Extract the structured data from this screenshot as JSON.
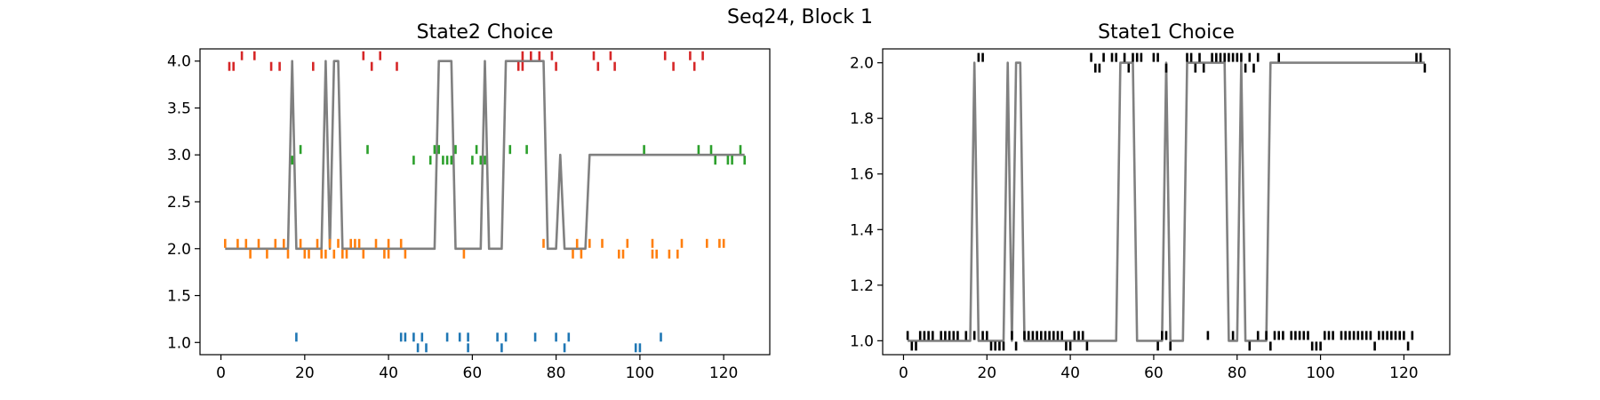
{
  "figure": {
    "suptitle": "Seq24, Block 1"
  },
  "chart_data": [
    {
      "type": "line",
      "title": "State2 Choice",
      "xlabel": "",
      "ylabel": "",
      "xlim": [
        -5,
        131
      ],
      "ylim": [
        0.87,
        4.13
      ],
      "xticks": [
        0,
        20,
        40,
        60,
        80,
        100,
        120
      ],
      "yticks": [
        1.0,
        1.5,
        2.0,
        2.5,
        3.0,
        3.5,
        4.0
      ],
      "ytick_format": 1,
      "series": [
        {
          "type": "line",
          "color": "#808080",
          "x": [
            1,
            16,
            17,
            18,
            24,
            25,
            26,
            27,
            28,
            29,
            51,
            52,
            55,
            56,
            57,
            62,
            63,
            64,
            67,
            68,
            77,
            78,
            79,
            80,
            81,
            82,
            87,
            88,
            125
          ],
          "y": [
            2,
            2,
            4,
            2,
            2,
            4,
            2,
            4,
            4,
            2,
            2,
            4,
            4,
            2,
            2,
            2,
            4,
            2,
            2,
            4,
            4,
            2,
            2,
            2,
            3,
            2,
            2,
            3,
            3
          ]
        },
        {
          "type": "raster",
          "color": "#d62728",
          "upper_x": [
            5,
            8,
            34,
            38,
            72,
            74,
            76,
            79,
            89,
            93,
            106,
            112,
            115
          ],
          "lower_x": [
            2,
            3,
            12,
            14,
            22,
            36,
            42,
            71,
            72,
            80,
            90,
            94,
            108,
            113
          ]
        },
        {
          "type": "raster",
          "color": "#2ca02c",
          "upper_x": [
            19,
            35,
            51,
            52,
            56,
            61,
            69,
            73,
            101,
            114,
            117,
            124
          ],
          "lower_x": [
            17,
            46,
            50,
            53,
            54,
            55,
            60,
            62,
            63,
            118,
            121,
            122,
            125
          ]
        },
        {
          "type": "raster",
          "color": "#ff7f0e",
          "upper_x": [
            1,
            4,
            6,
            9,
            13,
            15,
            19,
            23,
            26,
            28,
            31,
            32,
            33,
            37,
            40,
            43,
            77,
            85,
            88,
            91,
            97,
            103,
            110,
            116,
            119,
            120
          ],
          "lower_x": [
            7,
            11,
            16,
            20,
            21,
            24,
            25,
            27,
            29,
            30,
            34,
            39,
            40,
            44,
            58,
            84,
            86,
            95,
            96,
            103,
            104,
            107,
            109
          ]
        },
        {
          "type": "raster",
          "color": "#1f77b4",
          "upper_x": [
            18,
            43,
            44,
            46,
            48,
            54,
            57,
            59,
            66,
            68,
            75,
            80,
            83,
            105
          ],
          "lower_x": [
            47,
            49,
            59,
            67,
            82,
            99,
            100
          ]
        }
      ]
    },
    {
      "type": "line",
      "title": "State1 Choice",
      "xlabel": "",
      "ylabel": "",
      "xlim": [
        -5,
        131
      ],
      "ylim": [
        0.95,
        2.05
      ],
      "xticks": [
        0,
        20,
        40,
        60,
        80,
        100,
        120
      ],
      "yticks": [
        1.0,
        1.2,
        1.4,
        1.6,
        1.8,
        2.0
      ],
      "ytick_format": 1,
      "series": [
        {
          "type": "line",
          "color": "#808080",
          "x": [
            1,
            16,
            17,
            18,
            24,
            25,
            26,
            27,
            28,
            29,
            51,
            52,
            55,
            56,
            57,
            62,
            63,
            64,
            67,
            68,
            77,
            78,
            79,
            80,
            81,
            82,
            87,
            88,
            125
          ],
          "y": [
            1,
            1,
            2,
            1,
            1,
            2,
            1,
            2,
            2,
            1,
            1,
            2,
            2,
            1,
            1,
            1,
            2,
            1,
            1,
            2,
            2,
            1,
            1,
            1,
            2,
            1,
            1,
            2,
            2
          ]
        },
        {
          "type": "raster",
          "color": "#000000",
          "upper_x": [
            18,
            19,
            45,
            48,
            50,
            51,
            53,
            55,
            56,
            57,
            60,
            61,
            68,
            69,
            71,
            74,
            75,
            76,
            77,
            78,
            79,
            80,
            81,
            83,
            85,
            90,
            123,
            124
          ],
          "lower_x": [
            46,
            47,
            54,
            63,
            70,
            72,
            82,
            84,
            125
          ],
          "lower_points_low_x": [
            2,
            3,
            21,
            22,
            23,
            24,
            27,
            39,
            40,
            44,
            61,
            64,
            83,
            88,
            98,
            99,
            100,
            113,
            121
          ],
          "lower_points_up_x": [
            1,
            4,
            5,
            6,
            7,
            9,
            10,
            11,
            12,
            13,
            15,
            17,
            19,
            20,
            26,
            29,
            30,
            31,
            32,
            33,
            34,
            35,
            36,
            37,
            38,
            41,
            42,
            43,
            62,
            63,
            73,
            79,
            85,
            87,
            89,
            90,
            91,
            93,
            94,
            95,
            96,
            97,
            101,
            102,
            103,
            105,
            106,
            107,
            108,
            109,
            110,
            111,
            112,
            114,
            115,
            116,
            117,
            118,
            119,
            120,
            122
          ]
        }
      ]
    }
  ]
}
